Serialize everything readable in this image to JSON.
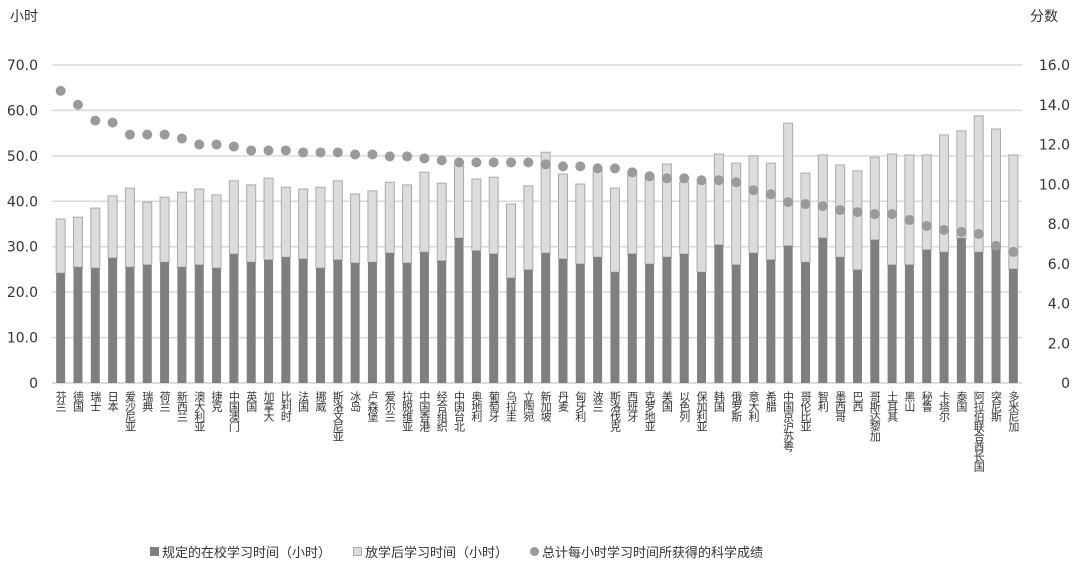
{
  "chart_data": {
    "type": "bar",
    "stacked": true,
    "left_axis_unit": "小时",
    "right_axis_unit": "分数",
    "ylim_left": [
      0,
      70
    ],
    "yticks_left": [
      "0",
      "10.0",
      "20.0",
      "30.0",
      "40.0",
      "50.0",
      "60.0",
      "70.0"
    ],
    "ylim_right": [
      0,
      16
    ],
    "yticks_right": [
      "0",
      "2.0",
      "4.0",
      "6.0",
      "8.0",
      "10.0",
      "12.0",
      "14.0",
      "16.0"
    ],
    "grid": true,
    "legend_position": "bottom",
    "categories": [
      "芬兰",
      "德国",
      "瑞士",
      "日本",
      "爱沙尼亚",
      "瑞典",
      "荷兰",
      "新西兰",
      "澳大利亚",
      "捷克",
      "中国澳门",
      "英国",
      "加拿大",
      "比利时",
      "法国",
      "挪威",
      "斯洛文尼亚",
      "冰岛",
      "卢森堡",
      "爱尔兰",
      "拉脱维亚",
      "中国香港",
      "经合组织",
      "中国台北",
      "奥地利",
      "葡萄牙",
      "乌拉圭",
      "立陶宛",
      "新加坡",
      "丹麦",
      "匈牙利",
      "波兰",
      "斯洛伐克",
      "西班牙",
      "克罗地亚",
      "美国",
      "以色列",
      "保加利亚",
      "韩国",
      "俄罗斯",
      "意大利",
      "希腊",
      "中国京沪苏粤",
      "哥伦比亚",
      "智利",
      "墨西哥",
      "巴西",
      "哥斯达黎加",
      "土耳其",
      "黑山",
      "秘鲁",
      "卡塔尔",
      "泰国",
      "阿拉伯联合酋长国",
      "突尼斯",
      "多米尼加"
    ],
    "series": [
      {
        "name": "规定的在校学习时间（小时）",
        "axis": "left",
        "kind": "bar",
        "color": "#7f7f7f",
        "values": [
          24.2,
          25.5,
          25.3,
          27.5,
          25.5,
          26.0,
          26.6,
          25.5,
          26.0,
          25.3,
          28.4,
          26.6,
          27.1,
          27.7,
          27.3,
          25.3,
          27.1,
          26.4,
          26.6,
          28.6,
          26.4,
          28.8,
          26.9,
          31.9,
          29.1,
          28.4,
          23.1,
          24.9,
          28.6,
          27.3,
          26.2,
          27.7,
          24.4,
          28.4,
          26.2,
          27.7,
          28.4,
          24.4,
          30.4,
          26.0,
          28.6,
          27.1,
          30.2,
          26.6,
          31.9,
          27.7,
          24.9,
          31.5,
          26.0,
          26.0,
          29.3,
          28.8,
          31.9,
          28.8,
          29.5,
          25.1
        ]
      },
      {
        "name": "放学后学习时间（小时）",
        "axis": "left",
        "kind": "bar",
        "color": "#dcdcdc",
        "values": [
          11.9,
          11.0,
          13.2,
          13.7,
          17.4,
          13.8,
          14.3,
          16.5,
          16.7,
          16.1,
          16.1,
          17.0,
          18.0,
          15.4,
          15.4,
          17.8,
          17.4,
          15.2,
          15.7,
          15.6,
          17.2,
          17.6,
          17.1,
          15.9,
          15.8,
          16.9,
          16.3,
          18.5,
          22.2,
          18.7,
          17.6,
          19.0,
          18.5,
          17.8,
          18.9,
          20.5,
          15.8,
          19.6,
          20.0,
          22.4,
          21.4,
          21.3,
          27.0,
          19.6,
          18.3,
          20.3,
          21.8,
          18.2,
          24.4,
          24.2,
          20.9,
          25.8,
          23.6,
          30.0,
          26.4,
          25.1
        ]
      },
      {
        "name": "总计每小时学习时间所获得的科学成绩",
        "axis": "right",
        "kind": "scatter",
        "color": "#9a9a9a",
        "values": [
          14.7,
          14.0,
          13.2,
          13.1,
          12.5,
          12.5,
          12.5,
          12.3,
          12.0,
          12.0,
          11.9,
          11.7,
          11.7,
          11.7,
          11.6,
          11.6,
          11.6,
          11.5,
          11.5,
          11.4,
          11.4,
          11.3,
          11.2,
          11.1,
          11.1,
          11.1,
          11.1,
          11.1,
          11.0,
          10.9,
          10.9,
          10.8,
          10.8,
          10.6,
          10.4,
          10.3,
          10.3,
          10.2,
          10.2,
          10.1,
          9.7,
          9.5,
          9.1,
          9.0,
          8.9,
          8.7,
          8.6,
          8.5,
          8.5,
          8.2,
          7.9,
          7.7,
          7.6,
          7.5,
          6.9,
          6.6
        ]
      }
    ]
  }
}
